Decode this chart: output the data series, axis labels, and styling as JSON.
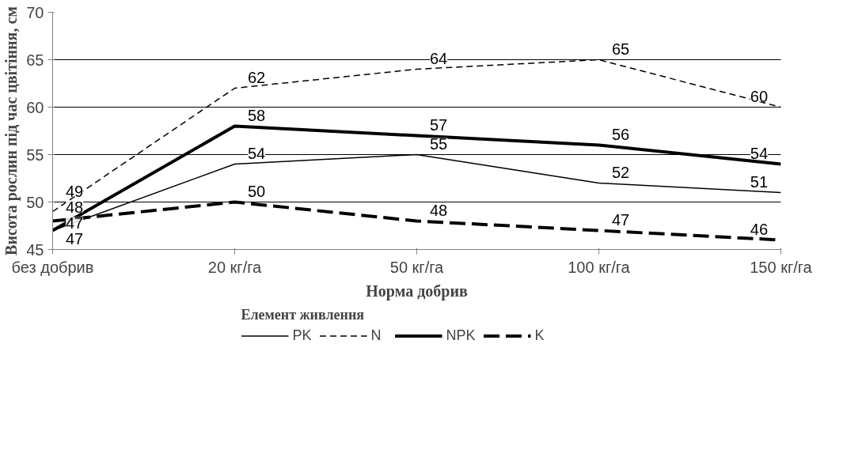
{
  "chart_data": {
    "type": "line",
    "xlabel": "Норма добрив",
    "ylabel": "Висота рослин під час цвітіння, см",
    "legend_title": "Елемент живлення",
    "categories": [
      "без добрив",
      "20 кг/га",
      "50 кг/га",
      "100 кг/га",
      "150 кг/га"
    ],
    "series": [
      {
        "name": "PK",
        "color": "#000000",
        "line_style": "solid",
        "values": [
          47,
          54,
          55,
          52,
          51
        ]
      },
      {
        "name": "N",
        "color": "#000000",
        "line_style": "dashed",
        "values": [
          49,
          62,
          64,
          65,
          60
        ]
      },
      {
        "name": "NPK",
        "color": "#000000",
        "line_style": "solid",
        "values": [
          47,
          58,
          57,
          56,
          54
        ]
      },
      {
        "name": "K",
        "color": "#000000",
        "line_style": "dashed",
        "values": [
          48,
          50,
          48,
          47,
          46
        ]
      }
    ],
    "ylim": [
      45,
      70
    ],
    "yticks": [
      45,
      50,
      55,
      60,
      65,
      70
    ],
    "grid": "y",
    "legend": "bottom",
    "data_labels": true,
    "marker": "none"
  }
}
